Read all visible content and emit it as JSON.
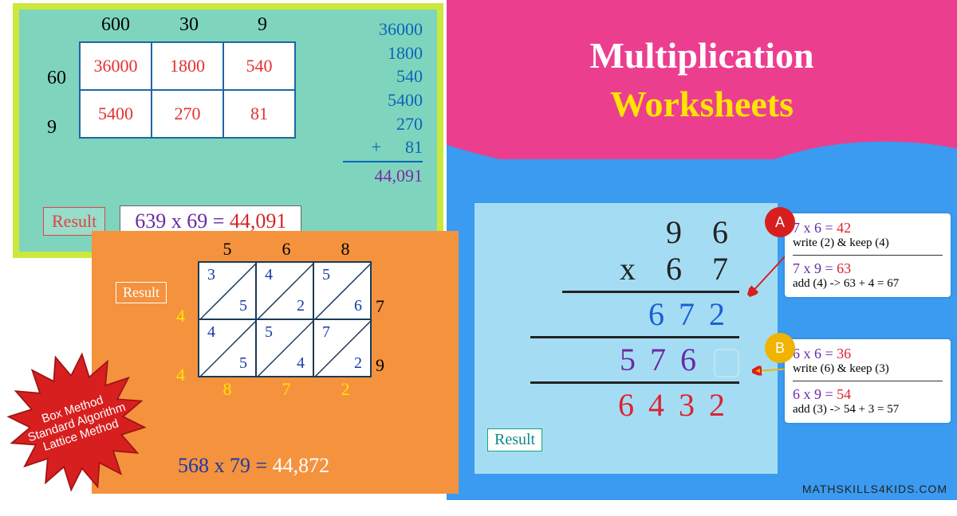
{
  "header": {
    "line1": "Multiplication",
    "line2": "Worksheets"
  },
  "watermark": "MATHSKILLS4KIDS.COM",
  "box": {
    "col_labels": [
      "600",
      "30",
      "9"
    ],
    "row_labels": [
      "60",
      "9"
    ],
    "cells": [
      [
        "36000",
        "1800",
        "540"
      ],
      [
        "5400",
        "270",
        "81"
      ]
    ],
    "addition": [
      "36000",
      "1800",
      "540",
      "5400",
      "270",
      "81"
    ],
    "plus": "+",
    "total": "44,091",
    "result_label": "Result",
    "expr_lhs": "639 x 69 = ",
    "expr_rhs": "44,091"
  },
  "lattice": {
    "col_labels": [
      "5",
      "6",
      "8"
    ],
    "row_labels": [
      "7",
      "9"
    ],
    "cells": [
      [
        [
          "3",
          "5"
        ],
        [
          "4",
          "2"
        ],
        [
          "5",
          "6"
        ]
      ],
      [
        [
          "4",
          "5"
        ],
        [
          "5",
          "4"
        ],
        [
          "7",
          "2"
        ]
      ]
    ],
    "left_carry": [
      "4",
      "4"
    ],
    "bottom_digits": [
      "8",
      "7",
      "2"
    ],
    "result_label": "Result",
    "expr_lhs": "568 x 79 = ",
    "expr_rhs": "44,872"
  },
  "burst": {
    "line1": "Box Method",
    "line2": "Standard Algorithm",
    "line3": "Lattice Method",
    "fill": "#d81f1f"
  },
  "std": {
    "top": "9 6",
    "mul": "x  6 7",
    "p1": "672",
    "p2": "576",
    "final": "6432",
    "result_label": "Result"
  },
  "steps": {
    "a": {
      "badge": "A",
      "eq1_lhs": "7 x 6 = ",
      "eq1_rhs": "42",
      "note1": "write (2) & keep (4)",
      "eq2_lhs": "7 x 9 = ",
      "eq2_rhs": "63",
      "note2": "add (4) -> 63 + 4 = 67"
    },
    "b": {
      "badge": "B",
      "eq1_lhs": "6 x 6 = ",
      "eq1_rhs": "36",
      "note1": "write (6) & keep (3)",
      "eq2_lhs": "6 x 9 = ",
      "eq2_rhs": "54",
      "note2": "add (3) -> 54 + 3 = 57"
    }
  }
}
